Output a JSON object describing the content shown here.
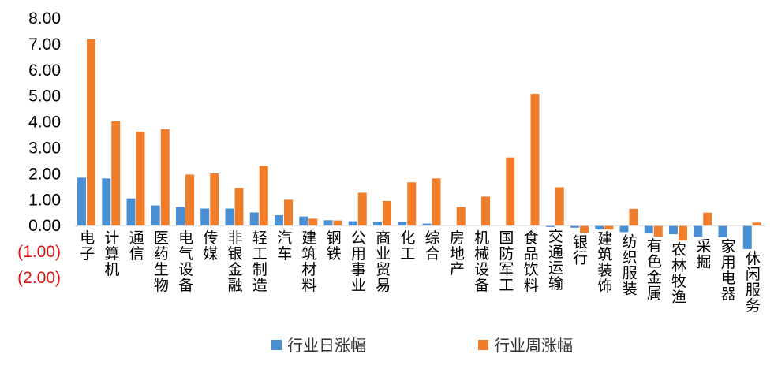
{
  "chart_data": {
    "type": "bar",
    "title": "",
    "xlabel": "",
    "ylabel": "",
    "ylim": [
      -2,
      8
    ],
    "yticks": [
      {
        "value": 8,
        "label": "8.00"
      },
      {
        "value": 7,
        "label": "7.00"
      },
      {
        "value": 6,
        "label": "6.00"
      },
      {
        "value": 5,
        "label": "5.00"
      },
      {
        "value": 4,
        "label": "4.00"
      },
      {
        "value": 3,
        "label": "3.00"
      },
      {
        "value": 2,
        "label": "2.00"
      },
      {
        "value": 1,
        "label": "1.00"
      },
      {
        "value": 0,
        "label": "0.00"
      },
      {
        "value": -1,
        "label": "(1.00)"
      },
      {
        "value": -2,
        "label": "(2.00)"
      }
    ],
    "negative_label_color": "#e01010",
    "positive_label_color": "#000000",
    "grid": false,
    "legend_position": "bottom",
    "categories": [
      "电子",
      "计算机",
      "通信",
      "医药生物",
      "电气设备",
      "传媒",
      "非银金融",
      "轻工制造",
      "汽车",
      "建筑材料",
      "钢铁",
      "公用事业",
      "商业贸易",
      "化工",
      "综合",
      "房地产",
      "机械设备",
      "国防军工",
      "食品饮料",
      "交通运输",
      "银行",
      "建筑装饰",
      "纺织服装",
      "有色金属",
      "农林牧渔",
      "采掘",
      "家用电器",
      "休闲服务"
    ],
    "series": [
      {
        "name": "行业日涨幅",
        "color": "#4a8fd4",
        "values": [
          1.85,
          1.82,
          1.05,
          0.78,
          0.72,
          0.66,
          0.66,
          0.51,
          0.4,
          0.35,
          0.21,
          0.17,
          0.14,
          0.14,
          0.08,
          0.0,
          0.0,
          0.0,
          0.0,
          -0.05,
          -0.08,
          -0.15,
          -0.25,
          -0.3,
          -0.33,
          -0.43,
          -0.45,
          -0.9
        ]
      },
      {
        "name": "行业周涨幅",
        "color": "#f07d2a",
        "values": [
          7.18,
          4.02,
          3.62,
          3.72,
          1.97,
          2.01,
          1.45,
          2.3,
          1.0,
          0.27,
          0.2,
          1.27,
          0.95,
          1.67,
          1.82,
          0.72,
          1.12,
          2.63,
          5.08,
          1.48,
          -0.28,
          -0.15,
          0.65,
          -0.42,
          -0.57,
          0.5,
          0.0,
          0.12
        ]
      }
    ]
  }
}
